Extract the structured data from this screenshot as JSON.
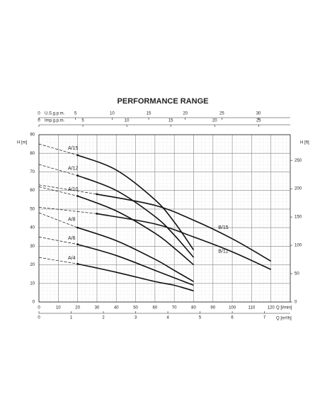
{
  "chart_data": {
    "type": "line",
    "title": "PERFORMANCE RANGE",
    "x_label": "Q [l/min]",
    "y_label": "H [m]",
    "y2_label": "H [ft]",
    "xlim": [
      0,
      130
    ],
    "xticks": [
      0,
      10,
      20,
      30,
      40,
      50,
      60,
      70,
      80,
      90,
      100,
      110,
      120
    ],
    "ylim": [
      0,
      90
    ],
    "yticks": [
      0,
      10,
      20,
      30,
      40,
      50,
      60,
      70,
      80,
      90
    ],
    "y2lim": [
      0,
      295.3
    ],
    "y2ticks": [
      0,
      50,
      100,
      150,
      200,
      250
    ],
    "extra_x_axes": [
      {
        "label": "U.S.g.p.m.",
        "position": "top",
        "xlim": [
          0,
          34.35
        ],
        "xticks": [
          0,
          5,
          10,
          15,
          20,
          25,
          30
        ]
      },
      {
        "label": "Imp.g.p.m.",
        "position": "top",
        "xlim": [
          0,
          28.6
        ],
        "xticks": [
          0,
          5,
          10,
          15,
          20,
          25
        ]
      },
      {
        "label": "Q [m³/h]",
        "position": "bottom",
        "xlim": [
          0,
          7.8
        ],
        "xticks": [
          0,
          1,
          2,
          3,
          4,
          5,
          6,
          7
        ]
      }
    ],
    "grid": true,
    "dashed_start": true,
    "series": [
      {
        "name": "A/15",
        "color": "#111111",
        "x": [
          0,
          20,
          40,
          60,
          70,
          80
        ],
        "values": [
          85,
          79,
          71,
          55,
          43,
          28
        ]
      },
      {
        "name": "A/12",
        "color": "#111111",
        "x": [
          0,
          20,
          40,
          60,
          70,
          80
        ],
        "values": [
          74,
          68,
          60,
          46,
          36,
          24
        ]
      },
      {
        "name": "A/10",
        "color": "#111111",
        "x": [
          0,
          20,
          40,
          60,
          70,
          80
        ],
        "values": [
          62,
          57,
          49,
          37,
          29,
          20
        ]
      },
      {
        "name": "A/8",
        "color": "#111111",
        "x": [
          0,
          20,
          40,
          60,
          70,
          80
        ],
        "values": [
          48,
          40,
          33,
          23,
          17,
          11
        ]
      },
      {
        "name": "A/6",
        "color": "#111111",
        "x": [
          0,
          20,
          40,
          60,
          70,
          80
        ],
        "values": [
          35,
          31,
          25,
          17,
          13,
          9
        ]
      },
      {
        "name": "A/4",
        "color": "#111111",
        "x": [
          0,
          20,
          40,
          60,
          70,
          80
        ],
        "values": [
          24,
          20.5,
          16,
          11,
          9,
          6
        ]
      },
      {
        "name": "B/15",
        "color": "#111111",
        "x": [
          0,
          30,
          60,
          80,
          100,
          120
        ],
        "values": [
          63,
          58,
          52,
          44,
          34,
          22
        ]
      },
      {
        "name": "B/12",
        "color": "#111111",
        "x": [
          0,
          30,
          60,
          80,
          100,
          120
        ],
        "values": [
          51,
          47.5,
          42,
          35,
          27,
          17.5
        ]
      }
    ]
  }
}
